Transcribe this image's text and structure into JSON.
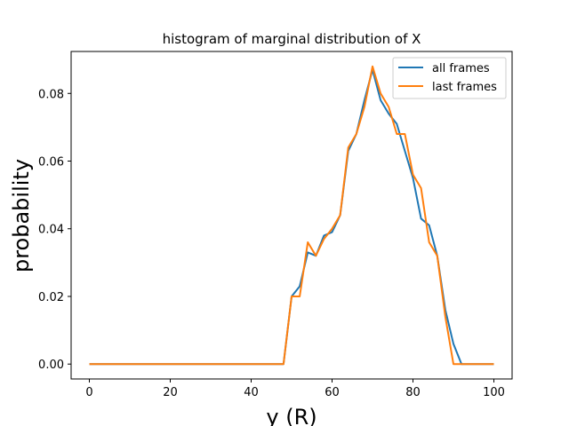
{
  "chart_data": {
    "type": "line",
    "title": "histogram of marginal distribution of X",
    "xlabel": "y (R)",
    "ylabel": "probability",
    "xlim": [
      -4.5,
      104.5
    ],
    "ylim": [
      -0.0044,
      0.0924
    ],
    "xticks": [
      0,
      20,
      40,
      60,
      80,
      100
    ],
    "yticks": [
      0.0,
      0.02,
      0.04,
      0.06,
      0.08
    ],
    "xtick_labels": [
      "0",
      "20",
      "40",
      "60",
      "80",
      "100"
    ],
    "ytick_labels": [
      "0.00",
      "0.02",
      "0.04",
      "0.06",
      "0.08"
    ],
    "legend_position": "top-right",
    "grid": false,
    "x": [
      0,
      2,
      4,
      6,
      8,
      10,
      12,
      14,
      16,
      18,
      20,
      22,
      24,
      26,
      28,
      30,
      32,
      34,
      36,
      38,
      40,
      42,
      44,
      46,
      48,
      50,
      52,
      54,
      56,
      58,
      60,
      62,
      64,
      66,
      68,
      70,
      72,
      74,
      76,
      78,
      80,
      82,
      84,
      86,
      88,
      90,
      92,
      94,
      96,
      98,
      100
    ],
    "series": [
      {
        "name": "all frames",
        "color": "#1f77b4",
        "values": [
          0,
          0,
          0,
          0,
          0,
          0,
          0,
          0,
          0,
          0,
          0,
          0,
          0,
          0,
          0,
          0,
          0,
          0,
          0,
          0,
          0,
          0,
          0,
          0,
          0,
          0.02,
          0.023,
          0.033,
          0.032,
          0.038,
          0.039,
          0.044,
          0.063,
          0.068,
          0.078,
          0.087,
          0.078,
          0.074,
          0.071,
          0.063,
          0.055,
          0.043,
          0.041,
          0.032,
          0.016,
          0.006,
          0,
          0,
          0,
          0,
          0
        ]
      },
      {
        "name": "last frames",
        "color": "#ff7f0e",
        "values": [
          0,
          0,
          0,
          0,
          0,
          0,
          0,
          0,
          0,
          0,
          0,
          0,
          0,
          0,
          0,
          0,
          0,
          0,
          0,
          0,
          0,
          0,
          0,
          0,
          0,
          0.02,
          0.02,
          0.036,
          0.032,
          0.037,
          0.04,
          0.044,
          0.064,
          0.068,
          0.076,
          0.088,
          0.08,
          0.076,
          0.068,
          0.068,
          0.056,
          0.052,
          0.036,
          0.032,
          0.014,
          0,
          0,
          0,
          0,
          0,
          0
        ]
      }
    ]
  }
}
